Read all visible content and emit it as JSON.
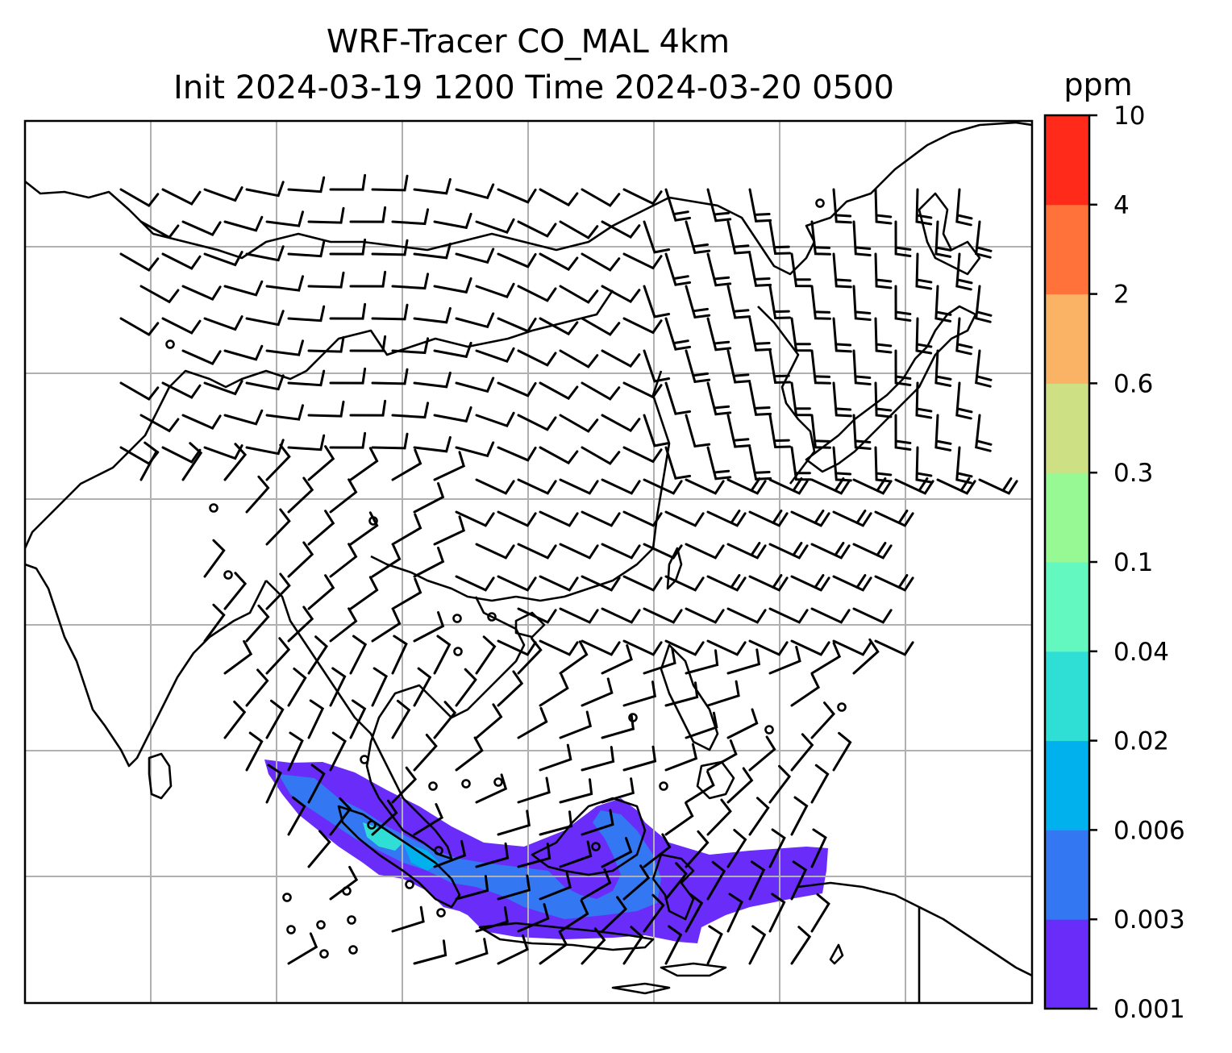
{
  "title": {
    "line1": "WRF-Tracer CO_MAL 4km",
    "line2": "Init 2024-03-19 1200 Time 2024-03-20 0500"
  },
  "colorbar": {
    "unit": "ppm",
    "ticks": [
      "0.001",
      "0.003",
      "0.006",
      "0.02",
      "0.04",
      "0.1",
      "0.3",
      "0.6",
      "2",
      "4",
      "10"
    ],
    "colors": [
      "#6A2CF9",
      "#3377F2",
      "#00B1EE",
      "#2FDFD5",
      "#63F8C0",
      "#96F994",
      "#CDE084",
      "#FAB265",
      "#FF7239",
      "#FF2A19"
    ]
  },
  "map": {
    "gridlines": true,
    "coastline_color": "#000000",
    "grid_color": "#b0b0b0"
  }
}
